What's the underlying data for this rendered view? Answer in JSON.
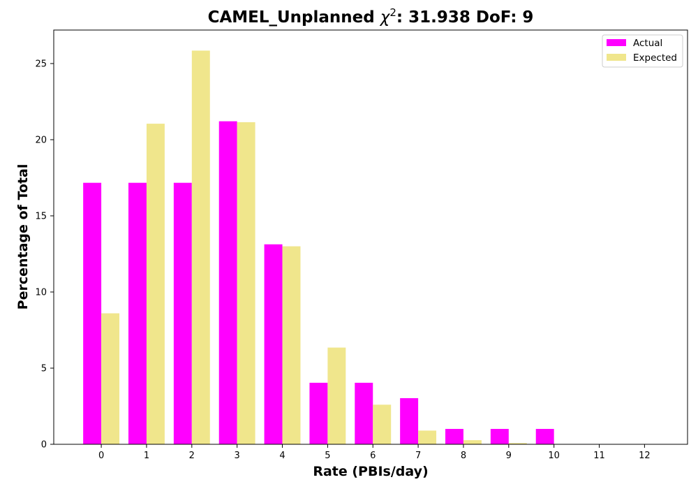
{
  "chart_data": {
    "type": "bar",
    "title": {
      "prefix": "CAMEL_Unplanned ",
      "chi_symbol": "χ",
      "chi_superscript": "2",
      "suffix": ": 31.938 DoF: 9"
    },
    "xlabel": "Rate (PBIs/day)",
    "ylabel": "Percentage of Total",
    "categories": [
      "0",
      "1",
      "2",
      "3",
      "4",
      "5",
      "6",
      "7",
      "8",
      "9",
      "10",
      "11",
      "12"
    ],
    "yticks": [
      "0",
      "5",
      "10",
      "15",
      "20",
      "25"
    ],
    "ylim": [
      0,
      27.2
    ],
    "xlim": [
      -1.05,
      12.95
    ],
    "series": [
      {
        "name": "Actual",
        "color": "#ff00ff",
        "values": [
          17.17,
          17.17,
          17.17,
          21.21,
          13.13,
          4.04,
          4.04,
          3.03,
          1.01,
          1.01,
          1.01,
          0,
          0
        ]
      },
      {
        "name": "Expected",
        "color": "#f0e68c",
        "values": [
          8.6,
          21.05,
          25.85,
          21.15,
          13.0,
          6.35,
          2.6,
          0.9,
          0.27,
          0.08,
          0.02,
          0.0,
          0.0
        ]
      }
    ],
    "legend_position": "top-right",
    "grid": false
  }
}
